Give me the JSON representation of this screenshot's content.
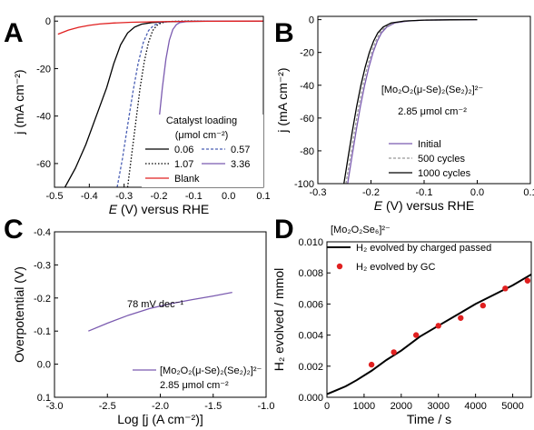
{
  "chart_data": [
    {
      "panel": "A",
      "type": "line",
      "xlabel_italic": "E",
      "xlabel_rest": " (V) versus RHE",
      "ylabel": "j (mA cm⁻²)",
      "xlim": [
        -0.5,
        0.1
      ],
      "ylim": [
        -70,
        2
      ],
      "xticks": [
        "-0.5",
        "-0.4",
        "-0.3",
        "-0.2",
        "-0.1",
        "0.0",
        "0.1"
      ],
      "yticks": [
        "0",
        "-20",
        "-40",
        "-60"
      ],
      "xtick_values": [
        -0.5,
        -0.4,
        -0.3,
        -0.2,
        -0.1,
        0.0,
        0.1
      ],
      "ytick_values": [
        0,
        -20,
        -40,
        -60
      ],
      "legend_title_1": "Catalyst loading",
      "legend_title_2": "(μmol cm⁻²)",
      "series": [
        {
          "name": "0.06",
          "color": "#000000",
          "dash": "solid",
          "x": [
            -0.47,
            -0.44,
            -0.41,
            -0.38,
            -0.35,
            -0.33,
            -0.31,
            -0.29,
            -0.27,
            -0.25,
            -0.22,
            -0.18,
            -0.12,
            0.0,
            0.1
          ],
          "y": [
            -70,
            -62,
            -52,
            -40,
            -28,
            -18,
            -10,
            -5,
            -2.5,
            -1.3,
            -0.6,
            -0.3,
            -0.1,
            0,
            0
          ]
        },
        {
          "name": "0.57",
          "color": "#4a5fb4",
          "dash": "dashed",
          "x": [
            -0.32,
            -0.305,
            -0.29,
            -0.275,
            -0.26,
            -0.245,
            -0.23,
            -0.215,
            -0.2,
            -0.18,
            -0.15,
            -0.1,
            0.0,
            0.1
          ],
          "y": [
            -70,
            -58,
            -44,
            -30,
            -18,
            -9,
            -4,
            -1.8,
            -0.8,
            -0.3,
            -0.1,
            0,
            0,
            0
          ]
        },
        {
          "name": "1.07",
          "color": "#000000",
          "dash": "dotted",
          "x": [
            -0.29,
            -0.278,
            -0.266,
            -0.254,
            -0.242,
            -0.23,
            -0.218,
            -0.206,
            -0.194,
            -0.18,
            -0.16,
            -0.12,
            0.0,
            0.1
          ],
          "y": [
            -70,
            -56,
            -42,
            -28,
            -17,
            -9,
            -4,
            -1.8,
            -0.8,
            -0.3,
            -0.1,
            0,
            0,
            0
          ]
        },
        {
          "name": "3.36",
          "color": "#7b5bb0",
          "dash": "solid",
          "x": [
            -0.22,
            -0.21,
            -0.2,
            -0.19,
            -0.18,
            -0.17,
            -0.16,
            -0.15,
            -0.14,
            -0.12,
            -0.1,
            -0.05,
            0.0,
            0.1
          ],
          "y": [
            -70,
            -57,
            -42,
            -28,
            -16,
            -8,
            -3.5,
            -1.5,
            -0.6,
            -0.2,
            -0.1,
            0,
            0,
            0
          ]
        },
        {
          "name": "Blank",
          "color": "#e02020",
          "dash": "solid",
          "x": [
            -0.49,
            -0.46,
            -0.43,
            -0.4,
            -0.37,
            -0.33,
            -0.28,
            -0.22,
            -0.15,
            -0.05,
            0.1
          ],
          "y": [
            -5.5,
            -3.8,
            -2.6,
            -1.8,
            -1.2,
            -0.8,
            -0.5,
            -0.3,
            -0.15,
            -0.05,
            0
          ]
        }
      ]
    },
    {
      "panel": "B",
      "type": "line",
      "xlabel_italic": "E",
      "xlabel_rest": " (V) versus RHE",
      "ylabel": "j (mA cm⁻²)",
      "xlim": [
        -0.3,
        0.1
      ],
      "ylim": [
        -100,
        2
      ],
      "xticks": [
        "-0.3",
        "-0.2",
        "-0.1",
        "0.0",
        "0.1"
      ],
      "yticks": [
        "0",
        "-20",
        "-40",
        "-60",
        "-80",
        "-100"
      ],
      "xtick_values": [
        -0.3,
        -0.2,
        -0.1,
        0.0,
        0.1
      ],
      "ytick_values": [
        0,
        -20,
        -40,
        -60,
        -80,
        -100
      ],
      "annotation_compound": "[Mo₂O₂(μ-Se)₂(Se₂)₂]²⁻",
      "annotation_loading": "2.85 μmol cm⁻²",
      "series": [
        {
          "name": "Initial",
          "color": "#7b5bb0",
          "dash": "solid",
          "x": [
            -0.244,
            -0.236,
            -0.228,
            -0.22,
            -0.212,
            -0.204,
            -0.196,
            -0.188,
            -0.18,
            -0.17,
            -0.155,
            -0.13,
            -0.1,
            -0.05,
            0.0
          ],
          "y": [
            -100,
            -84,
            -68,
            -53,
            -40,
            -29,
            -20,
            -13,
            -8,
            -4.5,
            -2,
            -0.8,
            -0.3,
            -0.1,
            0
          ]
        },
        {
          "name": "500 cycles",
          "color": "#999999",
          "dash": "dashed",
          "x": [
            -0.247,
            -0.239,
            -0.231,
            -0.223,
            -0.215,
            -0.207,
            -0.199,
            -0.191,
            -0.183,
            -0.173,
            -0.158,
            -0.133,
            -0.1,
            -0.05,
            0.0
          ],
          "y": [
            -100,
            -84,
            -68,
            -53,
            -40,
            -29,
            -20,
            -13,
            -8,
            -4.5,
            -2,
            -0.8,
            -0.3,
            -0.1,
            0
          ]
        },
        {
          "name": "1000 cycles",
          "color": "#000000",
          "dash": "solid",
          "x": [
            -0.251,
            -0.243,
            -0.235,
            -0.227,
            -0.219,
            -0.211,
            -0.203,
            -0.195,
            -0.187,
            -0.177,
            -0.162,
            -0.137,
            -0.1,
            -0.05,
            0.0
          ],
          "y": [
            -100,
            -84,
            -68,
            -53,
            -40,
            -29,
            -20,
            -13,
            -8,
            -4.5,
            -2,
            -0.8,
            -0.3,
            -0.1,
            0
          ]
        }
      ]
    },
    {
      "panel": "C",
      "type": "line",
      "xlabel": "Log [j (A cm⁻²)]",
      "ylabel": "Overpotential (V)",
      "xlim": [
        -3.0,
        -1.0
      ],
      "ylim": [
        -0.4,
        0.1
      ],
      "y_inverted": true,
      "xticks": [
        "-3.0",
        "-2.5",
        "-2.0",
        "-1.5",
        "-1.0"
      ],
      "yticks": [
        "-0.4",
        "-0.3",
        "-0.2",
        "-0.1",
        "0.0",
        "0.1"
      ],
      "xtick_values": [
        -3.0,
        -2.5,
        -2.0,
        -1.5,
        -1.0
      ],
      "ytick_values": [
        -0.4,
        -0.3,
        -0.2,
        -0.1,
        0.0,
        0.1
      ],
      "annotation_slope": "78 mV dec⁻¹",
      "annotation_loading": "2.85 μmol cm⁻²",
      "series": [
        {
          "name": "[Mo₂O₂(μ-Se)₂(Se₂)₂]²⁻",
          "color": "#7b5bb0",
          "dash": "solid",
          "x": [
            -2.68,
            -2.5,
            -2.3,
            -2.1,
            -1.9,
            -1.7,
            -1.5,
            -1.32
          ],
          "y": [
            -0.1,
            -0.124,
            -0.148,
            -0.168,
            -0.183,
            -0.195,
            -0.206,
            -0.217
          ]
        }
      ]
    },
    {
      "panel": "D",
      "type": "line",
      "xlabel": "Time / s",
      "ylabel": "H₂ evolved / mmol",
      "xlim": [
        0,
        5500
      ],
      "ylim": [
        0,
        0.01
      ],
      "xticks": [
        "0",
        "1000",
        "2000",
        "3000",
        "4000",
        "5000"
      ],
      "yticks": [
        "0.000",
        "0.002",
        "0.004",
        "0.006",
        "0.008",
        "0.010"
      ],
      "xtick_values": [
        0,
        1000,
        2000,
        3000,
        4000,
        5000
      ],
      "ytick_values": [
        0,
        0.002,
        0.004,
        0.006,
        0.008,
        0.01
      ],
      "legend_header": "[Mo₂O₂Se₆]²⁻",
      "series": [
        {
          "name": "H₂ evolved by charged passed",
          "color": "#000000",
          "kind": "line",
          "x": [
            0,
            200,
            500,
            800,
            1200,
            1600,
            2000,
            2500,
            3000,
            3500,
            4000,
            4500,
            5000,
            5500
          ],
          "y": [
            0.0002,
            0.0004,
            0.0007,
            0.0011,
            0.0017,
            0.0024,
            0.003,
            0.0039,
            0.0046,
            0.0053,
            0.006,
            0.0066,
            0.0072,
            0.0079
          ]
        },
        {
          "name": "H₂ evolved by GC",
          "color": "#e02020",
          "kind": "scatter",
          "x": [
            1200,
            1800,
            2400,
            3000,
            3600,
            4200,
            4800,
            5400
          ],
          "y": [
            0.0021,
            0.0029,
            0.004,
            0.0046,
            0.0051,
            0.0059,
            0.007,
            0.0075
          ]
        }
      ]
    }
  ]
}
